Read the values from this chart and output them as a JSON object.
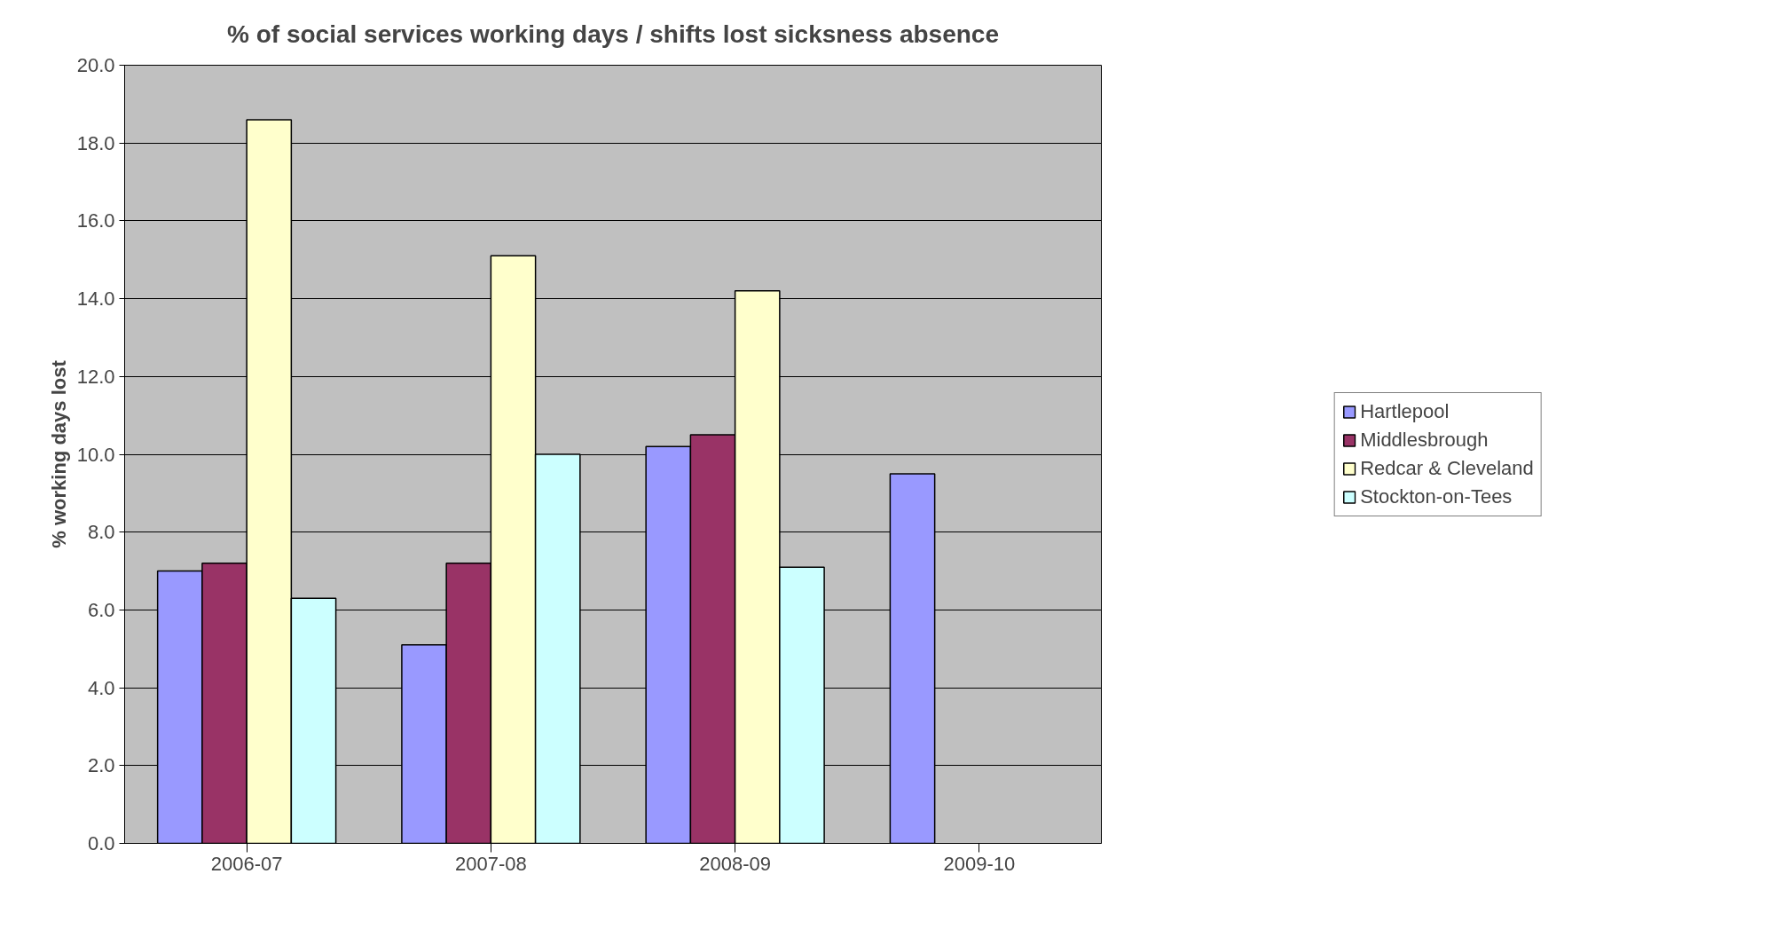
{
  "chart_data": {
    "type": "bar",
    "title": "% of social services working days / shifts lost sicksness absence",
    "ylabel": "% working days lost",
    "categories": [
      "2006-07",
      "2007-08",
      "2008-09",
      "2009-10"
    ],
    "series": [
      {
        "name": "Hartlepool",
        "color": "#9999ff",
        "values": [
          7.0,
          5.1,
          10.2,
          9.5
        ]
      },
      {
        "name": "Middlesbrough",
        "color": "#993366",
        "values": [
          7.2,
          7.2,
          10.5,
          null
        ]
      },
      {
        "name": "Redcar & Cleveland",
        "color": "#ffffcc",
        "values": [
          18.6,
          15.1,
          14.2,
          null
        ]
      },
      {
        "name": "Stockton-on-Tees",
        "color": "#ccffff",
        "values": [
          6.3,
          10.0,
          7.1,
          null
        ]
      }
    ],
    "ylim": [
      0,
      20
    ],
    "yticks": [
      {
        "value": 0,
        "label": "0.0"
      },
      {
        "value": 2,
        "label": "2.0"
      },
      {
        "value": 4,
        "label": "4.0"
      },
      {
        "value": 6,
        "label": "6.0"
      },
      {
        "value": 8,
        "label": "8.0"
      },
      {
        "value": 10,
        "label": "10.0"
      },
      {
        "value": 12,
        "label": "12.0"
      },
      {
        "value": 14,
        "label": "14.0"
      },
      {
        "value": 16,
        "label": "16.0"
      },
      {
        "value": 18,
        "label": "18.0"
      },
      {
        "value": 20,
        "label": "20.0"
      }
    ],
    "grid": "y",
    "legend": "right"
  }
}
